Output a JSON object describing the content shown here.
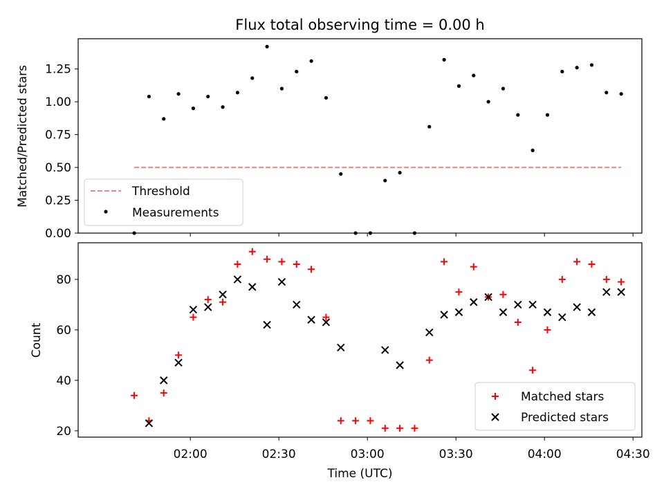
{
  "chart_data": [
    {
      "type": "scatter",
      "title": "Flux total observing time = 0.00 h",
      "xlabel": "",
      "ylabel": "Matched/Predicted stars",
      "x_unit": "time (UTC)",
      "xlim": [
        "01:22",
        "04:33"
      ],
      "ylim": [
        0,
        1.48
      ],
      "yticks": [
        0.0,
        0.25,
        0.5,
        0.75,
        1.0,
        1.25
      ],
      "ytick_labels": [
        "0.00",
        "0.25",
        "0.50",
        "0.75",
        "1.00",
        "1.25"
      ],
      "grid": false,
      "legend_position": "lower-left",
      "threshold": {
        "name": "Threshold",
        "value": 0.5,
        "x_start": "01:41",
        "x_end": "04:26",
        "color": "#ff8080",
        "style": "dashed"
      },
      "series": [
        {
          "name": "Measurements",
          "color": "#000000",
          "marker": "dot",
          "points": [
            [
              "01:41",
              0.0
            ],
            [
              "01:46",
              1.04
            ],
            [
              "01:51",
              0.87
            ],
            [
              "01:56",
              1.06
            ],
            [
              "02:01",
              0.95
            ],
            [
              "02:06",
              1.04
            ],
            [
              "02:11",
              0.96
            ],
            [
              "02:16",
              1.07
            ],
            [
              "02:21",
              1.18
            ],
            [
              "02:26",
              1.42
            ],
            [
              "02:31",
              1.1
            ],
            [
              "02:36",
              1.23
            ],
            [
              "02:41",
              1.31
            ],
            [
              "02:46",
              1.03
            ],
            [
              "02:51",
              0.45
            ],
            [
              "02:56",
              0.0
            ],
            [
              "03:01",
              0.0
            ],
            [
              "03:06",
              0.4
            ],
            [
              "03:11",
              0.46
            ],
            [
              "03:16",
              0.0
            ],
            [
              "03:21",
              0.81
            ],
            [
              "03:26",
              1.32
            ],
            [
              "03:31",
              1.12
            ],
            [
              "03:36",
              1.2
            ],
            [
              "03:41",
              1.0
            ],
            [
              "03:46",
              1.1
            ],
            [
              "03:51",
              0.9
            ],
            [
              "03:56",
              0.63
            ],
            [
              "04:01",
              0.9
            ],
            [
              "04:06",
              1.23
            ],
            [
              "04:11",
              1.26
            ],
            [
              "04:16",
              1.28
            ],
            [
              "04:21",
              1.07
            ],
            [
              "04:26",
              1.06
            ]
          ]
        }
      ]
    },
    {
      "type": "scatter",
      "title": "",
      "xlabel": "Time (UTC)",
      "ylabel": "Count",
      "x_unit": "time (UTC)",
      "xlim": [
        "01:22",
        "04:33"
      ],
      "ylim": [
        17.5,
        94.5
      ],
      "yticks": [
        20,
        40,
        60,
        80
      ],
      "ytick_labels": [
        "20",
        "40",
        "60",
        "80"
      ],
      "xticks": [
        "02:00",
        "02:30",
        "03:00",
        "03:30",
        "04:00",
        "04:30"
      ],
      "grid": false,
      "legend_position": "lower-right",
      "series": [
        {
          "name": "Matched stars",
          "color": "#ff0000",
          "marker": "plus",
          "points": [
            [
              "01:41",
              34
            ],
            [
              "01:46",
              24
            ],
            [
              "01:51",
              35
            ],
            [
              "01:56",
              50
            ],
            [
              "02:01",
              65
            ],
            [
              "02:06",
              72
            ],
            [
              "02:11",
              71
            ],
            [
              "02:16",
              86
            ],
            [
              "02:21",
              91
            ],
            [
              "02:26",
              88
            ],
            [
              "02:31",
              87
            ],
            [
              "02:36",
              86
            ],
            [
              "02:41",
              84
            ],
            [
              "02:46",
              65
            ],
            [
              "02:51",
              24
            ],
            [
              "02:56",
              24
            ],
            [
              "03:01",
              24
            ],
            [
              "03:06",
              21
            ],
            [
              "03:11",
              21
            ],
            [
              "03:16",
              21
            ],
            [
              "03:21",
              48
            ],
            [
              "03:26",
              87
            ],
            [
              "03:31",
              75
            ],
            [
              "03:36",
              85
            ],
            [
              "03:41",
              73
            ],
            [
              "03:46",
              74
            ],
            [
              "03:51",
              63
            ],
            [
              "03:56",
              44
            ],
            [
              "04:01",
              60
            ],
            [
              "04:06",
              80
            ],
            [
              "04:11",
              87
            ],
            [
              "04:16",
              86
            ],
            [
              "04:21",
              80
            ],
            [
              "04:26",
              79
            ]
          ]
        },
        {
          "name": "Predicted stars",
          "color": "#000000",
          "marker": "x",
          "points": [
            [
              "01:46",
              23
            ],
            [
              "01:51",
              40
            ],
            [
              "01:56",
              47
            ],
            [
              "02:01",
              68
            ],
            [
              "02:06",
              69
            ],
            [
              "02:11",
              74
            ],
            [
              "02:16",
              80
            ],
            [
              "02:21",
              77
            ],
            [
              "02:26",
              62
            ],
            [
              "02:31",
              79
            ],
            [
              "02:36",
              70
            ],
            [
              "02:41",
              64
            ],
            [
              "02:46",
              63
            ],
            [
              "02:51",
              53
            ],
            [
              "03:06",
              52
            ],
            [
              "03:11",
              46
            ],
            [
              "03:21",
              59
            ],
            [
              "03:26",
              66
            ],
            [
              "03:31",
              67
            ],
            [
              "03:36",
              71
            ],
            [
              "03:41",
              73
            ],
            [
              "03:46",
              67
            ],
            [
              "03:51",
              70
            ],
            [
              "03:56",
              70
            ],
            [
              "04:01",
              67
            ],
            [
              "04:06",
              65
            ],
            [
              "04:11",
              69
            ],
            [
              "04:16",
              67
            ],
            [
              "04:21",
              75
            ],
            [
              "04:26",
              75
            ]
          ]
        }
      ]
    }
  ]
}
